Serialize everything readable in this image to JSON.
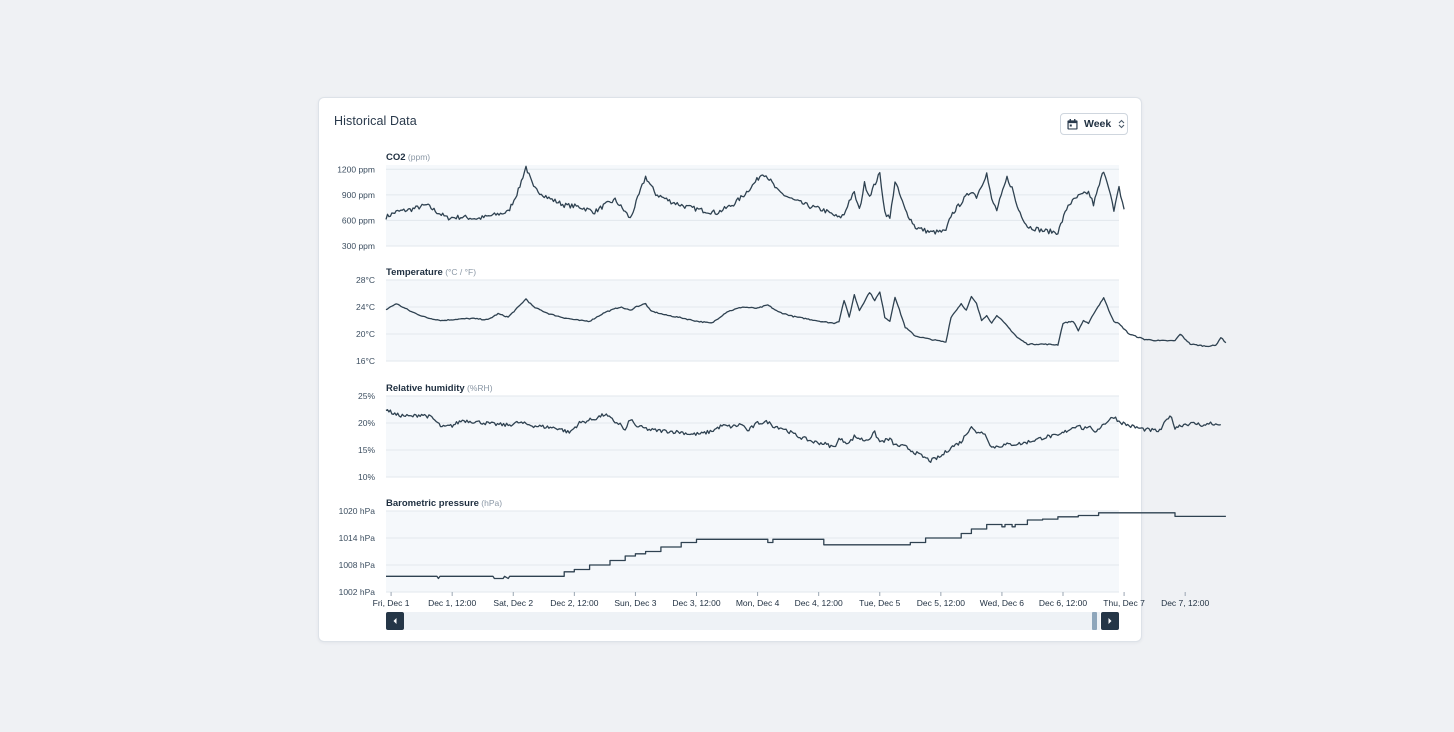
{
  "card": {
    "title": "Historical Data",
    "period": {
      "selected": "Week",
      "icons": [
        "calendar-icon",
        "sort-updown-icon"
      ]
    }
  },
  "colors": {
    "line": "#2f4251",
    "plot_bg": "#f5f8fb",
    "grid": "#e2e7ed",
    "axis_text": "#3c4e60",
    "unit_text": "#8a97a5"
  },
  "x_axis": {
    "ticks": [
      "Fri, Dec 1",
      "Dec 1, 12:00",
      "Sat, Dec 2",
      "Dec 2, 12:00",
      "Sun, Dec 3",
      "Dec 3, 12:00",
      "Mon, Dec 4",
      "Dec 4, 12:00",
      "Tue, Dec 5",
      "Dec 5, 12:00",
      "Wed, Dec 6",
      "Dec 6, 12:00",
      "Thu, Dec 7",
      "Dec 7, 12:00"
    ],
    "range_hours": [
      -1,
      143
    ]
  },
  "chart_data": [
    {
      "type": "line",
      "title": "CO2",
      "unit": "(ppm)",
      "ylim": [
        300,
        1250
      ],
      "y_ticks": [
        {
          "v": 1200,
          "label": "1200 ppm"
        },
        {
          "v": 900,
          "label": "900 ppm"
        },
        {
          "v": 600,
          "label": "600 ppm"
        },
        {
          "v": 300,
          "label": "300 ppm"
        }
      ],
      "noise": 28,
      "points": [
        [
          -1,
          640
        ],
        [
          1,
          700
        ],
        [
          4,
          730
        ],
        [
          7,
          780
        ],
        [
          9,
          700
        ],
        [
          11,
          630
        ],
        [
          14,
          640
        ],
        [
          17,
          620
        ],
        [
          20,
          660
        ],
        [
          23,
          700
        ],
        [
          25,
          950
        ],
        [
          26.5,
          1230
        ],
        [
          28,
          980
        ],
        [
          31,
          860
        ],
        [
          34,
          780
        ],
        [
          37,
          760
        ],
        [
          40,
          700
        ],
        [
          42,
          780
        ],
        [
          44,
          840
        ],
        [
          46,
          700
        ],
        [
          47,
          620
        ],
        [
          49,
          950
        ],
        [
          50,
          1110
        ],
        [
          52,
          910
        ],
        [
          55,
          820
        ],
        [
          58,
          760
        ],
        [
          61,
          720
        ],
        [
          64,
          690
        ],
        [
          67,
          780
        ],
        [
          69,
          880
        ],
        [
          71,
          1010
        ],
        [
          73,
          1160
        ],
        [
          74,
          1110
        ],
        [
          76,
          940
        ],
        [
          79,
          840
        ],
        [
          82,
          770
        ],
        [
          85,
          720
        ],
        [
          88,
          630
        ],
        [
          89,
          670
        ],
        [
          90,
          830
        ],
        [
          91,
          920
        ],
        [
          92,
          720
        ],
        [
          93,
          1030
        ],
        [
          94,
          890
        ],
        [
          96,
          1150
        ],
        [
          97,
          700
        ],
        [
          98,
          620
        ],
        [
          99,
          1060
        ],
        [
          101,
          720
        ],
        [
          103,
          520
        ],
        [
          106,
          460
        ],
        [
          109,
          470
        ],
        [
          110,
          660
        ],
        [
          112,
          810
        ],
        [
          114,
          950
        ],
        [
          115,
          880
        ],
        [
          117,
          1150
        ],
        [
          118,
          840
        ],
        [
          119,
          720
        ],
        [
          121,
          1100
        ],
        [
          122,
          980
        ],
        [
          123,
          760
        ],
        [
          125,
          530
        ],
        [
          128,
          480
        ],
        [
          131,
          460
        ],
        [
          133,
          780
        ],
        [
          135,
          880
        ],
        [
          137,
          930
        ],
        [
          138,
          790
        ],
        [
          140,
          1190
        ],
        [
          141,
          1000
        ],
        [
          142,
          700
        ],
        [
          143,
          980
        ],
        [
          144,
          730
        ]
      ]
    },
    {
      "type": "line",
      "title": "Temperature",
      "unit": "(°C / °F)",
      "ylim": [
        16,
        28
      ],
      "y_ticks": [
        {
          "v": 28,
          "label": "28°C"
        },
        {
          "v": 24,
          "label": "24°C"
        },
        {
          "v": 20,
          "label": "20°C"
        },
        {
          "v": 16,
          "label": "16°C"
        }
      ],
      "noise": 0.08,
      "points": [
        [
          -1,
          23.6
        ],
        [
          1,
          24.5
        ],
        [
          4,
          23.3
        ],
        [
          7,
          22.4
        ],
        [
          10,
          22
        ],
        [
          13,
          22.2
        ],
        [
          16,
          22.3
        ],
        [
          19,
          22.1
        ],
        [
          21,
          23
        ],
        [
          23,
          22.5
        ],
        [
          25,
          24
        ],
        [
          26.5,
          25.2
        ],
        [
          28,
          24
        ],
        [
          31,
          23
        ],
        [
          34,
          22.4
        ],
        [
          37,
          22
        ],
        [
          39,
          21.9
        ],
        [
          42,
          23.2
        ],
        [
          45,
          24
        ],
        [
          47,
          23.5
        ],
        [
          48,
          24
        ],
        [
          50,
          24.5
        ],
        [
          51,
          23.4
        ],
        [
          54,
          22.8
        ],
        [
          57,
          22.4
        ],
        [
          60,
          21.9
        ],
        [
          63,
          21.6
        ],
        [
          66,
          23.3
        ],
        [
          69,
          24
        ],
        [
          72,
          23.8
        ],
        [
          74,
          24.3
        ],
        [
          76,
          23.3
        ],
        [
          79,
          22.6
        ],
        [
          82,
          22.2
        ],
        [
          85,
          21.8
        ],
        [
          87,
          21.6
        ],
        [
          88,
          21.9
        ],
        [
          89,
          25
        ],
        [
          90,
          22.5
        ],
        [
          91,
          25.8
        ],
        [
          92,
          23.5
        ],
        [
          94,
          26.2
        ],
        [
          95,
          25
        ],
        [
          96,
          26.2
        ],
        [
          97,
          22.5
        ],
        [
          98,
          21.9
        ],
        [
          99,
          25.5
        ],
        [
          101,
          21
        ],
        [
          103,
          19.7
        ],
        [
          106,
          19.2
        ],
        [
          109,
          18.8
        ],
        [
          110,
          22.5
        ],
        [
          112,
          24.5
        ],
        [
          113,
          23.5
        ],
        [
          114,
          25.5
        ],
        [
          115,
          24.5
        ],
        [
          116,
          22
        ],
        [
          117,
          22.8
        ],
        [
          118,
          21.6
        ],
        [
          119,
          22.8
        ],
        [
          121,
          21.2
        ],
        [
          123,
          19.5
        ],
        [
          125,
          18.5
        ],
        [
          128,
          18.5
        ],
        [
          131,
          18.4
        ],
        [
          132,
          21.6
        ],
        [
          134,
          21.9
        ],
        [
          135,
          20.5
        ],
        [
          136,
          22
        ],
        [
          137,
          21.5
        ],
        [
          138,
          23
        ],
        [
          140,
          25.4
        ],
        [
          141,
          23.5
        ],
        [
          142,
          21.9
        ],
        [
          143,
          21.5
        ],
        [
          145,
          20
        ],
        [
          148,
          19.2
        ],
        [
          151,
          19
        ],
        [
          154,
          19
        ],
        [
          155,
          20
        ],
        [
          157,
          18.5
        ],
        [
          160,
          18.2
        ],
        [
          162,
          18.3
        ],
        [
          163,
          19.5
        ],
        [
          164,
          18.7
        ]
      ]
    },
    {
      "type": "line",
      "title": "Relative humidity",
      "unit": "(%RH)",
      "ylim": [
        10,
        25
      ],
      "y_ticks": [
        {
          "v": 25,
          "label": "25%"
        },
        {
          "v": 20,
          "label": "20%"
        },
        {
          "v": 15,
          "label": "15%"
        },
        {
          "v": 10,
          "label": "10%"
        }
      ],
      "noise": 0.35,
      "points": [
        [
          -1,
          22.5
        ],
        [
          1,
          21.5
        ],
        [
          4,
          21.2
        ],
        [
          6,
          21.6
        ],
        [
          8,
          21
        ],
        [
          10,
          19.2
        ],
        [
          12,
          19.5
        ],
        [
          14,
          20.5
        ],
        [
          17,
          20.2
        ],
        [
          20,
          19.8
        ],
        [
          23,
          19.6
        ],
        [
          25,
          20.1
        ],
        [
          28,
          19.5
        ],
        [
          31,
          19.2
        ],
        [
          33,
          19
        ],
        [
          35,
          18.2
        ],
        [
          37,
          20
        ],
        [
          40,
          20.8
        ],
        [
          42,
          21.6
        ],
        [
          44,
          20.2
        ],
        [
          45,
          19.8
        ],
        [
          46,
          18.5
        ],
        [
          47,
          20.8
        ],
        [
          48,
          19.5
        ],
        [
          51,
          18.7
        ],
        [
          54,
          18.5
        ],
        [
          57,
          18.3
        ],
        [
          59,
          17.9
        ],
        [
          61,
          18
        ],
        [
          63,
          18.5
        ],
        [
          65,
          19.5
        ],
        [
          67,
          19.3
        ],
        [
          69,
          19.8
        ],
        [
          70,
          18.5
        ],
        [
          72,
          20
        ],
        [
          74,
          20.2
        ],
        [
          75,
          19.5
        ],
        [
          77,
          19
        ],
        [
          80,
          17.5
        ],
        [
          83,
          16.5
        ],
        [
          85,
          16.2
        ],
        [
          87,
          15.5
        ],
        [
          88,
          17
        ],
        [
          90,
          16.3
        ],
        [
          91,
          17.5
        ],
        [
          93,
          16.8
        ],
        [
          94,
          17.2
        ],
        [
          95,
          18.2
        ],
        [
          96,
          16.5
        ],
        [
          98,
          17
        ],
        [
          99,
          15.9
        ],
        [
          101,
          15.6
        ],
        [
          103,
          14.5
        ],
        [
          106,
          13
        ],
        [
          108,
          13.8
        ],
        [
          110,
          15.5
        ],
        [
          112,
          16.5
        ],
        [
          114,
          19.5
        ],
        [
          115,
          18
        ],
        [
          116,
          18.5
        ],
        [
          117,
          17.5
        ],
        [
          118,
          15.5
        ],
        [
          121,
          16
        ],
        [
          124,
          16.2
        ],
        [
          127,
          17
        ],
        [
          129,
          17.5
        ],
        [
          131,
          17.6
        ],
        [
          133,
          18.7
        ],
        [
          135,
          19.7
        ],
        [
          136,
          18.8
        ],
        [
          137,
          19.5
        ],
        [
          138,
          18.2
        ],
        [
          140,
          19.8
        ],
        [
          142,
          21.2
        ],
        [
          143,
          20.3
        ],
        [
          145,
          19.5
        ],
        [
          148,
          18.8
        ],
        [
          151,
          18.5
        ],
        [
          153,
          21.5
        ],
        [
          154,
          19.2
        ],
        [
          156,
          19.8
        ],
        [
          158,
          19.9
        ],
        [
          160,
          19.5
        ],
        [
          161,
          20.1
        ],
        [
          162,
          19.6
        ],
        [
          163,
          19.7
        ]
      ]
    },
    {
      "type": "line",
      "title": "Barometric pressure",
      "unit": "(hPa)",
      "ylim": [
        1002,
        1020
      ],
      "y_ticks": [
        {
          "v": 1020,
          "label": "1020 hPa"
        },
        {
          "v": 1014,
          "label": "1014 hPa"
        },
        {
          "v": 1008,
          "label": "1008 hPa"
        },
        {
          "v": 1002,
          "label": "1002 hPa"
        }
      ],
      "noise": 0,
      "step": true,
      "points": [
        [
          -1,
          1005.5
        ],
        [
          9,
          1005.5
        ],
        [
          9.3,
          1005
        ],
        [
          9.6,
          1005.5
        ],
        [
          20,
          1005.5
        ],
        [
          20.3,
          1005
        ],
        [
          22,
          1005
        ],
        [
          22.3,
          1005.5
        ],
        [
          23,
          1005
        ],
        [
          23.3,
          1005.5
        ],
        [
          34,
          1005.5
        ],
        [
          34,
          1006.5
        ],
        [
          36,
          1006.5
        ],
        [
          36,
          1007
        ],
        [
          39,
          1007
        ],
        [
          39,
          1008
        ],
        [
          43,
          1008
        ],
        [
          43,
          1009
        ],
        [
          46,
          1009
        ],
        [
          46,
          1010
        ],
        [
          48,
          1010
        ],
        [
          48,
          1010.5
        ],
        [
          50,
          1010.5
        ],
        [
          50,
          1011
        ],
        [
          53,
          1011
        ],
        [
          53,
          1012
        ],
        [
          57,
          1012
        ],
        [
          57,
          1013
        ],
        [
          60,
          1013
        ],
        [
          60,
          1013.7
        ],
        [
          74,
          1013.7
        ],
        [
          74,
          1013
        ],
        [
          75,
          1013
        ],
        [
          75,
          1013.7
        ],
        [
          85,
          1013.7
        ],
        [
          85,
          1012.5
        ],
        [
          102,
          1012.5
        ],
        [
          102,
          1013
        ],
        [
          105,
          1013
        ],
        [
          105,
          1014
        ],
        [
          112,
          1014
        ],
        [
          112,
          1015
        ],
        [
          114,
          1015
        ],
        [
          114,
          1016
        ],
        [
          117,
          1016
        ],
        [
          117,
          1017
        ],
        [
          120,
          1017
        ],
        [
          120,
          1016.5
        ],
        [
          120.6,
          1016.5
        ],
        [
          120.6,
          1017
        ],
        [
          122,
          1017
        ],
        [
          122,
          1016.5
        ],
        [
          122.6,
          1016.5
        ],
        [
          122.6,
          1017
        ],
        [
          125,
          1017
        ],
        [
          125,
          1018
        ],
        [
          128,
          1018
        ],
        [
          128,
          1018.2
        ],
        [
          131,
          1018.2
        ],
        [
          131,
          1018.7
        ],
        [
          135,
          1018.7
        ],
        [
          135,
          1019
        ],
        [
          139,
          1019
        ],
        [
          139,
          1019.6
        ],
        [
          154,
          1019.6
        ],
        [
          154,
          1018.8
        ],
        [
          164,
          1018.8
        ]
      ]
    }
  ],
  "scrollbar": {
    "prev_label": "previous-period",
    "next_label": "next-period"
  }
}
